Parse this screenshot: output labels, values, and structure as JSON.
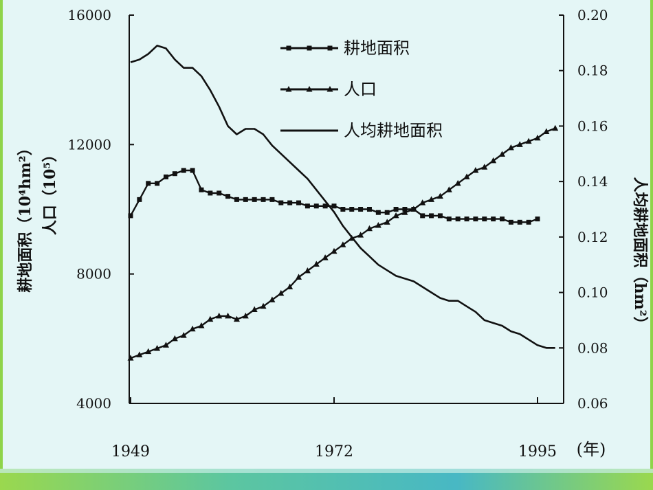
{
  "slide": {
    "background_color": "#e4f6f6",
    "accent_color": "#4cc0b0",
    "accent_color_2": "#8fd44a"
  },
  "chart_data": {
    "type": "line",
    "xlabel_unit": "(年)",
    "x_ticks": [
      "1949",
      "1972",
      "1995"
    ],
    "xlim": [
      1949,
      1995
    ],
    "left_axis": {
      "label_line1": "耕地面积（10⁴hm²）",
      "label_line2": "人口（10⁵）",
      "ylim": [
        4000,
        16000
      ],
      "ticks": [
        "4000",
        "8000",
        "12000",
        "16000"
      ]
    },
    "right_axis": {
      "label": "人均耕地面积（hm²）",
      "ylim": [
        0.06,
        0.2
      ],
      "ticks": [
        "0.06",
        "0.08",
        "0.10",
        "0.12",
        "0.14",
        "0.16",
        "0.18",
        "0.20"
      ]
    },
    "legend": {
      "placement": "top-center",
      "entries": [
        "耕地面积",
        "人口",
        "人均耕地面积"
      ]
    },
    "series": [
      {
        "name": "耕地面积",
        "axis": "left",
        "marker": "square",
        "points": [
          [
            1949,
            9800
          ],
          [
            1950,
            10300
          ],
          [
            1951,
            10800
          ],
          [
            1952,
            10800
          ],
          [
            1953,
            11000
          ],
          [
            1954,
            11100
          ],
          [
            1955,
            11200
          ],
          [
            1956,
            11200
          ],
          [
            1957,
            10600
          ],
          [
            1958,
            10500
          ],
          [
            1959,
            10500
          ],
          [
            1960,
            10400
          ],
          [
            1961,
            10300
          ],
          [
            1962,
            10300
          ],
          [
            1963,
            10300
          ],
          [
            1964,
            10300
          ],
          [
            1965,
            10300
          ],
          [
            1966,
            10200
          ],
          [
            1967,
            10200
          ],
          [
            1968,
            10200
          ],
          [
            1969,
            10100
          ],
          [
            1970,
            10100
          ],
          [
            1971,
            10100
          ],
          [
            1972,
            10100
          ],
          [
            1973,
            10000
          ],
          [
            1974,
            10000
          ],
          [
            1975,
            10000
          ],
          [
            1976,
            10000
          ],
          [
            1977,
            9900
          ],
          [
            1978,
            9900
          ],
          [
            1979,
            10000
          ],
          [
            1980,
            10000
          ],
          [
            1981,
            10000
          ],
          [
            1982,
            9800
          ],
          [
            1983,
            9800
          ],
          [
            1984,
            9800
          ],
          [
            1985,
            9700
          ],
          [
            1986,
            9700
          ],
          [
            1987,
            9700
          ],
          [
            1988,
            9700
          ],
          [
            1989,
            9700
          ],
          [
            1990,
            9700
          ],
          [
            1991,
            9700
          ],
          [
            1992,
            9600
          ],
          [
            1993,
            9600
          ],
          [
            1994,
            9600
          ],
          [
            1995,
            9700
          ]
        ]
      },
      {
        "name": "人口",
        "axis": "left",
        "marker": "triangle",
        "points": [
          [
            1949,
            5400
          ],
          [
            1950,
            5500
          ],
          [
            1951,
            5600
          ],
          [
            1952,
            5700
          ],
          [
            1953,
            5800
          ],
          [
            1954,
            6000
          ],
          [
            1955,
            6100
          ],
          [
            1956,
            6300
          ],
          [
            1957,
            6400
          ],
          [
            1958,
            6600
          ],
          [
            1959,
            6700
          ],
          [
            1960,
            6700
          ],
          [
            1961,
            6600
          ],
          [
            1962,
            6700
          ],
          [
            1963,
            6900
          ],
          [
            1964,
            7000
          ],
          [
            1965,
            7200
          ],
          [
            1966,
            7400
          ],
          [
            1967,
            7600
          ],
          [
            1968,
            7900
          ],
          [
            1969,
            8100
          ],
          [
            1970,
            8300
          ],
          [
            1971,
            8500
          ],
          [
            1972,
            8700
          ],
          [
            1973,
            8900
          ],
          [
            1974,
            9100
          ],
          [
            1975,
            9200
          ],
          [
            1976,
            9400
          ],
          [
            1977,
            9500
          ],
          [
            1978,
            9600
          ],
          [
            1979,
            9800
          ],
          [
            1980,
            9900
          ],
          [
            1981,
            10000
          ],
          [
            1982,
            10200
          ],
          [
            1983,
            10300
          ],
          [
            1984,
            10400
          ],
          [
            1985,
            10600
          ],
          [
            1986,
            10800
          ],
          [
            1987,
            11000
          ],
          [
            1988,
            11200
          ],
          [
            1989,
            11300
          ],
          [
            1990,
            11500
          ],
          [
            1991,
            11700
          ],
          [
            1992,
            11900
          ],
          [
            1993,
            12000
          ],
          [
            1994,
            12100
          ],
          [
            1995,
            12200
          ],
          [
            1996,
            12400
          ],
          [
            1997,
            12500
          ]
        ]
      },
      {
        "name": "人均耕地面积",
        "axis": "right",
        "marker": "none",
        "points": [
          [
            1949,
            0.183
          ],
          [
            1950,
            0.184
          ],
          [
            1951,
            0.186
          ],
          [
            1952,
            0.189
          ],
          [
            1953,
            0.188
          ],
          [
            1954,
            0.184
          ],
          [
            1955,
            0.181
          ],
          [
            1956,
            0.181
          ],
          [
            1957,
            0.178
          ],
          [
            1958,
            0.173
          ],
          [
            1959,
            0.167
          ],
          [
            1960,
            0.16
          ],
          [
            1961,
            0.157
          ],
          [
            1962,
            0.159
          ],
          [
            1963,
            0.159
          ],
          [
            1964,
            0.157
          ],
          [
            1965,
            0.153
          ],
          [
            1966,
            0.15
          ],
          [
            1967,
            0.147
          ],
          [
            1968,
            0.144
          ],
          [
            1969,
            0.141
          ],
          [
            1970,
            0.137
          ],
          [
            1971,
            0.133
          ],
          [
            1972,
            0.129
          ],
          [
            1973,
            0.124
          ],
          [
            1974,
            0.12
          ],
          [
            1975,
            0.116
          ],
          [
            1976,
            0.113
          ],
          [
            1977,
            0.11
          ],
          [
            1978,
            0.108
          ],
          [
            1979,
            0.106
          ],
          [
            1980,
            0.105
          ],
          [
            1981,
            0.104
          ],
          [
            1982,
            0.102
          ],
          [
            1983,
            0.1
          ],
          [
            1984,
            0.098
          ],
          [
            1985,
            0.097
          ],
          [
            1986,
            0.097
          ],
          [
            1987,
            0.095
          ],
          [
            1988,
            0.093
          ],
          [
            1989,
            0.09
          ],
          [
            1990,
            0.089
          ],
          [
            1991,
            0.088
          ],
          [
            1992,
            0.086
          ],
          [
            1993,
            0.085
          ],
          [
            1994,
            0.083
          ],
          [
            1995,
            0.081
          ],
          [
            1996,
            0.08
          ],
          [
            1997,
            0.08
          ]
        ]
      }
    ]
  }
}
